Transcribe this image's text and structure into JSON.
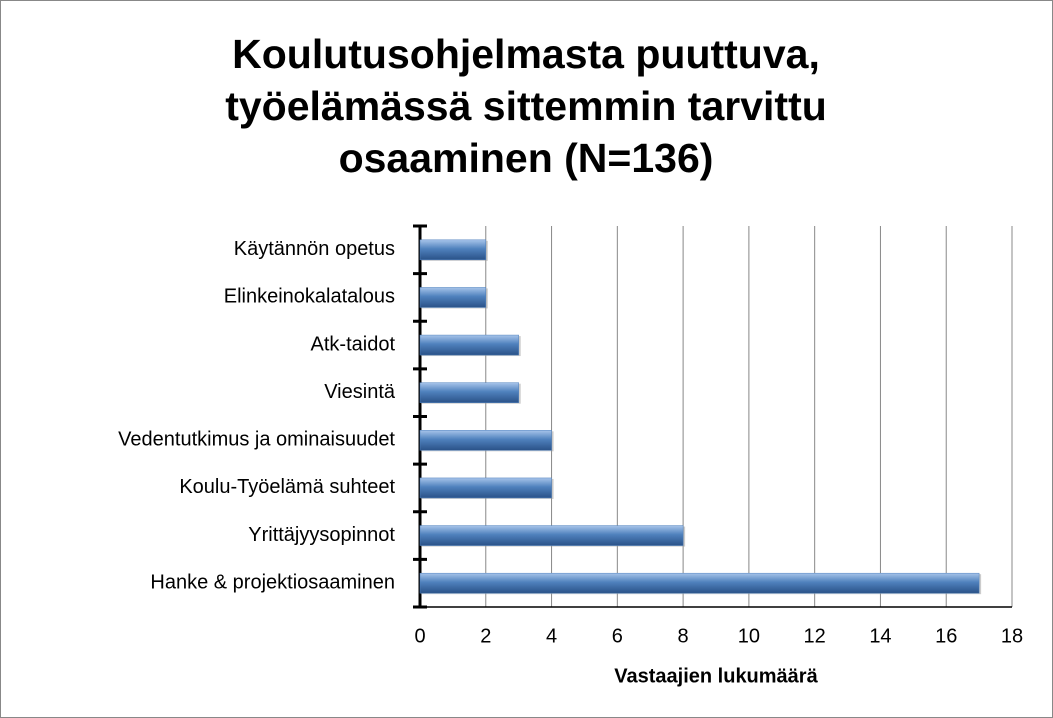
{
  "chart_data": {
    "type": "bar",
    "orientation": "horizontal",
    "title": "Koulutusohjelmasta puuttuva, työelämässä sittemmin tarvittu osaaminen (N=136)",
    "categories": [
      "Käytännön opetus",
      "Elinkeinokalatalous",
      "Atk-taidot",
      "Viesintä",
      "Vedentutkimus ja ominaisuudet",
      "Koulu-Työelämä suhteet",
      "Yrittäjyysopinnot",
      "Hanke & projektiosaaminen"
    ],
    "values": [
      2,
      2,
      3,
      3,
      4,
      4,
      8,
      17
    ],
    "color": "#4f81bd",
    "xlabel": "Vastaajien lukumäärä",
    "xlim": [
      0,
      18
    ],
    "xticks": [
      0,
      2,
      4,
      6,
      8,
      10,
      12,
      14,
      16,
      18
    ],
    "grid": true
  }
}
